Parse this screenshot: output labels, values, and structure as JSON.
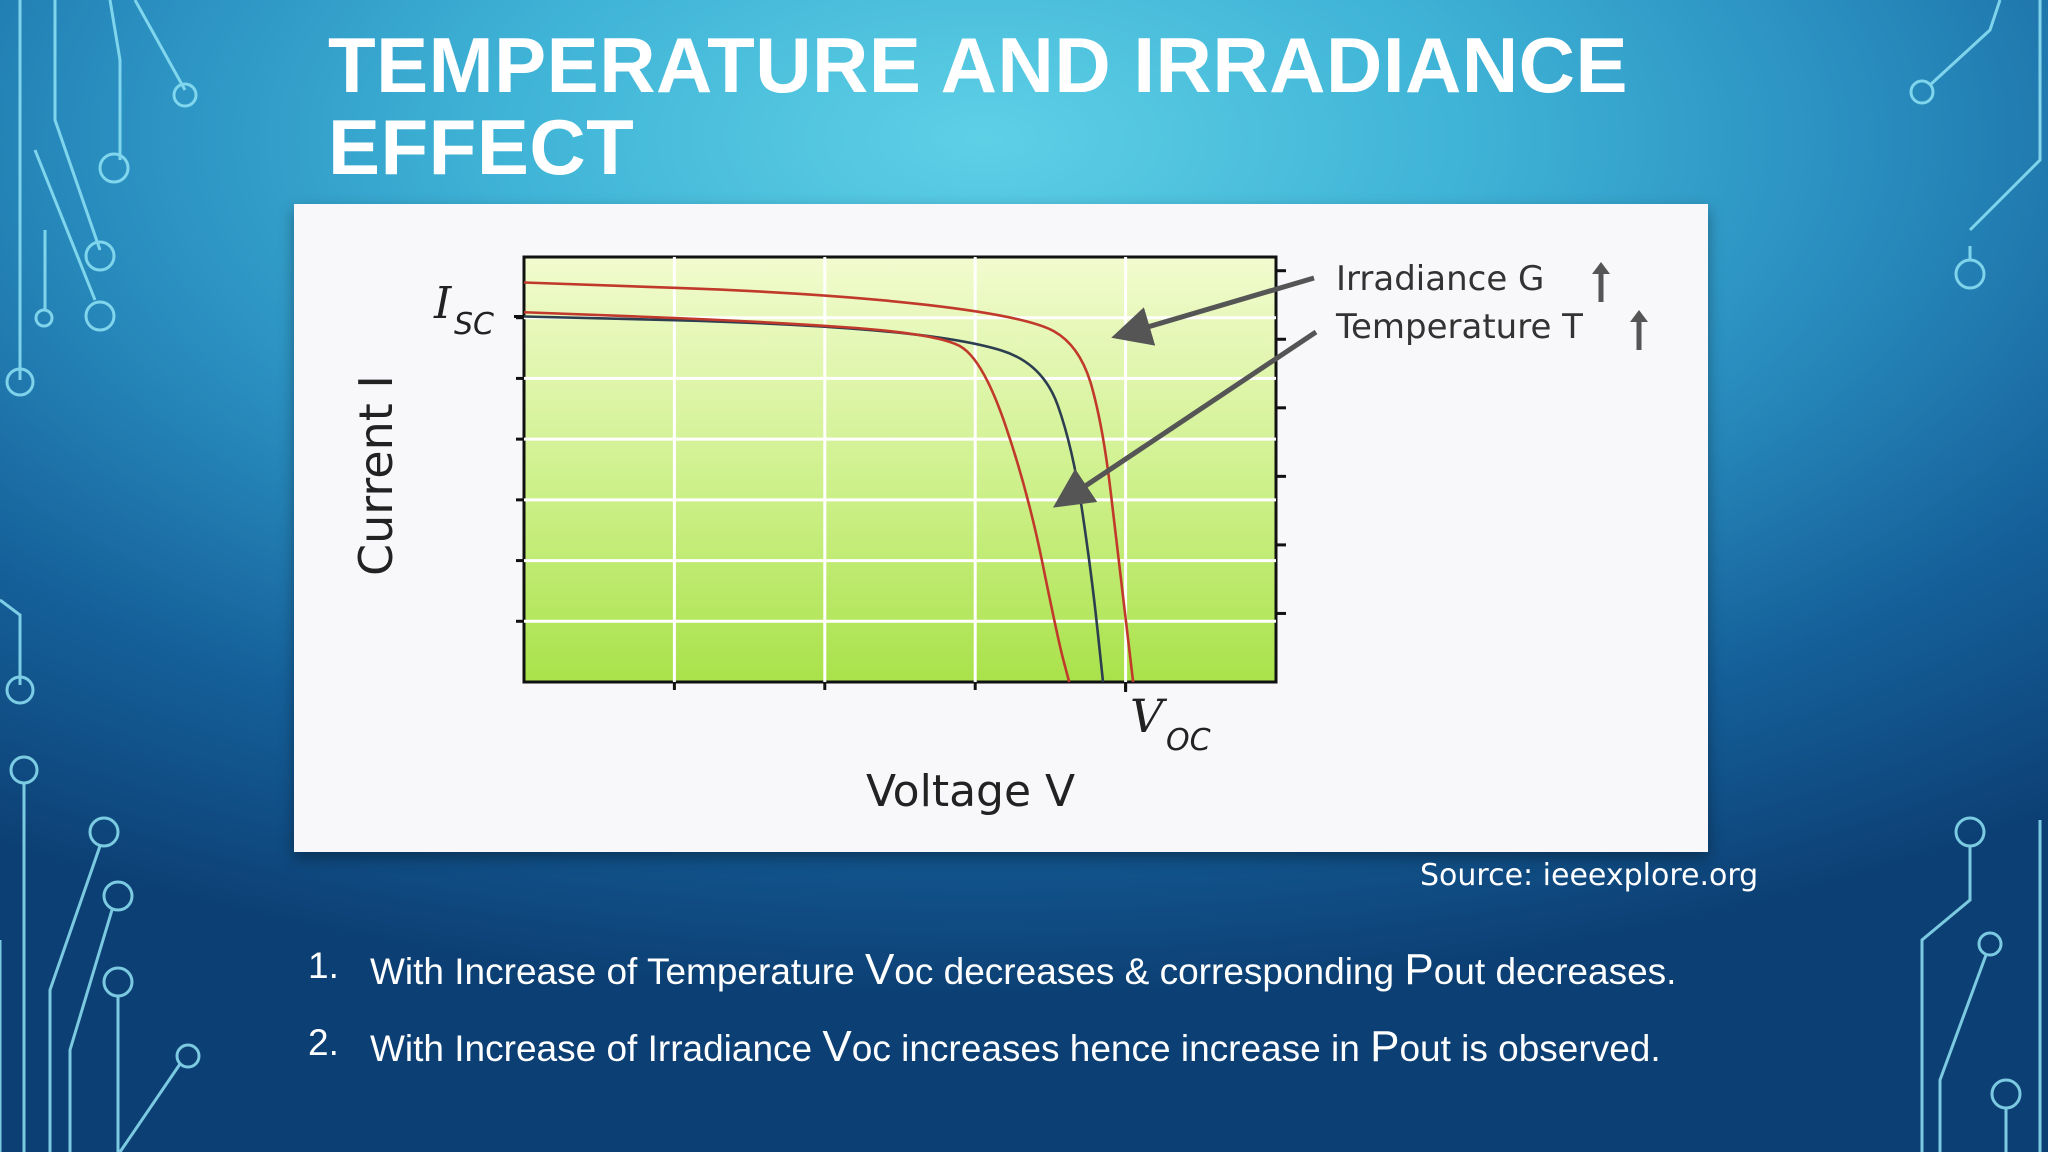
{
  "slide": {
    "title_line1": "TEMPERATURE AND IRRADIANCE",
    "title_line2": "EFFECT",
    "source": "Source: ieeexplore.org",
    "bullets": [
      {
        "num": "1.",
        "pre": "With Increase of Temperature ",
        "v": "V",
        "mid": "oc decreases & corresponding ",
        "p": "P",
        "post": "out decreases."
      },
      {
        "num": "2.",
        "pre": "With Increase of Irradiance ",
        "v": "V",
        "mid": "oc increases hence increase in ",
        "p": "P",
        "post": "out is observed."
      }
    ]
  },
  "chart_data": {
    "type": "line",
    "xlabel": "Voltage V",
    "ylabel": "Current I",
    "x_marker_label": "V",
    "x_marker_sub": "OC",
    "y_marker_label": "I",
    "y_marker_sub": "SC",
    "xlim": [
      0,
      100
    ],
    "ylim": [
      0,
      100
    ],
    "x_marker_value": 80,
    "y_marker_value": 86,
    "grid": true,
    "series": [
      {
        "color": "#c0392b",
        "points": [
          [
            0,
            94
          ],
          [
            40,
            91.5
          ],
          [
            67,
            86
          ],
          [
            74,
            79
          ],
          [
            77,
            60
          ],
          [
            79,
            30
          ],
          [
            81,
            0
          ]
        ]
      },
      {
        "color": "#2c3e50",
        "points": [
          [
            0,
            86
          ],
          [
            35,
            84.5
          ],
          [
            58,
            81
          ],
          [
            69,
            75
          ],
          [
            73,
            55
          ],
          [
            75.5,
            25
          ],
          [
            77,
            0
          ]
        ]
      },
      {
        "color": "#c0392b",
        "points": [
          [
            0,
            87
          ],
          [
            30,
            85
          ],
          [
            55,
            82
          ],
          [
            61,
            76
          ],
          [
            67,
            45
          ],
          [
            71,
            10
          ],
          [
            72.5,
            0
          ]
        ]
      }
    ],
    "annotations": [
      {
        "text": "Irradiance G",
        "arrow_target_series": 0,
        "arrow_target": [
          80,
          82
        ]
      },
      {
        "text": "Temperature T",
        "arrow_target_series": 2,
        "arrow_target": [
          72,
          43
        ]
      }
    ]
  }
}
